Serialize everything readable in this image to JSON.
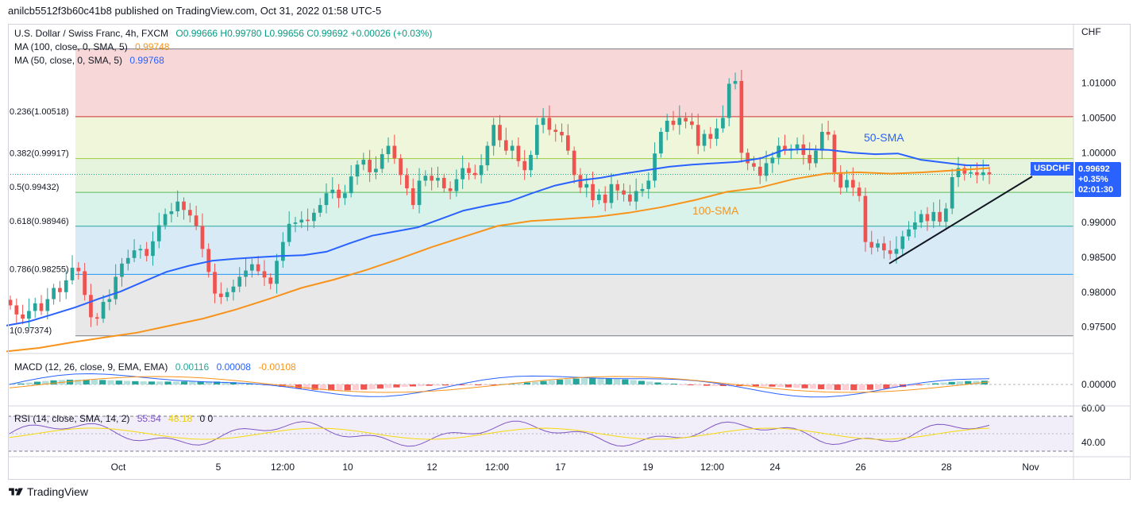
{
  "header": {
    "published": "anilcb5512f3b60c41b8 published on TradingView.com, Oct 31, 2022 01:58 UTC-5"
  },
  "legend": {
    "symbol": "U.S. Dollar / Swiss Franc, 4h, FXCM",
    "ohlc": "O0.99666 H0.99780 L0.99656 C0.99692 +0.00026 (+0.03%)",
    "ma100": "MA (100, close, 0, SMA, 5)",
    "ma100_value": "0.99748",
    "ma50": "MA (50, close, 0, SMA, 5)",
    "ma50_value": "0.99768",
    "macd": "MACD (12, 26, close, 9, EMA, EMA)",
    "macd_hist": "0.00116",
    "macd_line": "0.00008",
    "macd_signal": "-0.00108",
    "rsi": "RSI (14, close, SMA, 14, 2)",
    "rsi_value": "55.54",
    "rsi_sma": "48.18",
    "rsi_extra": "0  0"
  },
  "colors": {
    "up": "#26a69a",
    "down": "#ef5350",
    "sma50": "#2962ff",
    "sma100": "#f7931a",
    "accent": "#2962ff"
  },
  "price_tag": {
    "symbol": "USDCHF",
    "price": "0.99692",
    "change": "+0.35%",
    "countdown": "02:01:30"
  },
  "footer": {
    "brand": "TradingView"
  },
  "chart_data": {
    "type": "candlestick",
    "currency_label": "CHF",
    "y_range": [
      0.9712,
      1.0185
    ],
    "price_ticks": [
      "1.01000",
      "1.00500",
      "1.00000",
      "0.99500",
      "0.99000",
      "0.98500",
      "0.98000",
      "0.97500"
    ],
    "x_labels": [
      "Oct",
      "5",
      "12:00",
      "10",
      "12",
      "12:00",
      "17",
      "19",
      "12:00",
      "24",
      "26",
      "28",
      "Nov"
    ],
    "fib_levels": [
      {
        "label": "0.236(1.00518)",
        "value": 1.00518
      },
      {
        "label": "0.382(0.99917)",
        "value": 0.99917
      },
      {
        "label": "0.5(0.99432)",
        "value": 0.99432
      },
      {
        "label": "0.618(0.98946)",
        "value": 0.98946
      },
      {
        "label": "0.786(0.98255)",
        "value": 0.98255
      },
      {
        "label": "1(0.97374)",
        "value": 0.97374
      }
    ],
    "fib_top": 1.01489,
    "annotations": {
      "sma50": "50-SMA",
      "sma100": "100-SMA"
    },
    "trendline": {
      "from": [
        0.0,
        0.9841
      ],
      "to": [
        1.0,
        0.9966
      ]
    },
    "candles_close": [
      0.9781,
      0.9768,
      0.9762,
      0.9773,
      0.9784,
      0.9773,
      0.979,
      0.9806,
      0.98,
      0.9817,
      0.9835,
      0.983,
      0.9796,
      0.9764,
      0.9762,
      0.9786,
      0.979,
      0.9822,
      0.9841,
      0.9849,
      0.986,
      0.9862,
      0.9852,
      0.9873,
      0.9896,
      0.9912,
      0.9916,
      0.993,
      0.9918,
      0.991,
      0.9895,
      0.9862,
      0.9829,
      0.9798,
      0.9793,
      0.98,
      0.9808,
      0.9822,
      0.9831,
      0.984,
      0.983,
      0.9821,
      0.9812,
      0.9845,
      0.9872,
      0.9898,
      0.99,
      0.9904,
      0.9902,
      0.9914,
      0.9925,
      0.9942,
      0.9947,
      0.9935,
      0.9942,
      0.9966,
      0.9983,
      0.999,
      0.9972,
      0.9977,
      0.9998,
      1.001,
      0.9992,
      0.9968,
      0.9949,
      0.9925,
      0.996,
      0.9967,
      0.996,
      0.9964,
      0.9949,
      0.9945,
      0.9962,
      0.9978,
      0.9971,
      0.9968,
      0.9982,
      1.001,
      1.004,
      1.0018,
      1.0003,
      1.001,
      0.9988,
      0.9975,
      0.9997,
      1.004,
      1.005,
      1.0033,
      1.003,
      1.0025,
      1.0003,
      0.9968,
      0.995,
      0.9955,
      0.9932,
      0.994,
      0.9928,
      0.9955,
      0.9946,
      0.994,
      0.993,
      0.9945,
      0.9948,
      0.996,
      0.9999,
      1.003,
      1.0046,
      1.004,
      1.005,
      1.0045,
      1.004,
      1.001,
      1.0027,
      1.002,
      1.0035,
      1.005,
      1.0099,
      1.0103,
      1.0,
      0.9985,
      0.998,
      0.9967,
      0.9985,
      0.9993,
      1.001,
      1.0003,
      1.0006,
      1.0012,
      0.9997,
      0.9985,
      1.0003,
      1.003,
      1.0026,
      0.9972,
      0.995,
      0.9961,
      0.995,
      0.9938,
      0.9872,
      0.9864,
      0.987,
      0.986,
      0.9855,
      0.9862,
      0.988,
      0.989,
      0.99,
      0.9912,
      0.9902,
      0.9915,
      0.9901,
      0.992,
      0.9965,
      0.9978,
      0.997,
      0.9972,
      0.9968,
      0.9972,
      0.9969
    ],
    "sma50": [
      0.9752,
      0.9758,
      0.9768,
      0.9778,
      0.979,
      0.9801,
      0.9815,
      0.9829,
      0.9838,
      0.9845,
      0.9848,
      0.985,
      0.9852,
      0.9853,
      0.9858,
      0.987,
      0.9881,
      0.9887,
      0.9893,
      0.9905,
      0.9917,
      0.9924,
      0.993,
      0.9942,
      0.9953,
      0.996,
      0.9964,
      0.997,
      0.9975,
      0.998,
      0.9983,
      0.9985,
      0.9987,
      0.9992,
      1.0004,
      1.0005,
      1.0004,
      1.0,
      0.9998,
      0.9999,
      0.999,
      0.9986,
      0.9982,
      0.9982
    ],
    "sma100": [
      0.9715,
      0.972,
      0.9728,
      0.9735,
      0.9742,
      0.9752,
      0.9762,
      0.9775,
      0.979,
      0.9806,
      0.9818,
      0.9832,
      0.9848,
      0.9865,
      0.988,
      0.9895,
      0.9902,
      0.9905,
      0.9908,
      0.9914,
      0.9922,
      0.9932,
      0.9944,
      0.995,
      0.9962,
      0.997,
      0.9972,
      0.997,
      0.9972,
      0.9975,
      0.9978
    ],
    "macd": {
      "zero_label": "0.00000"
    },
    "rsi": {
      "levels": [
        "60.00",
        "40.00"
      ]
    }
  }
}
